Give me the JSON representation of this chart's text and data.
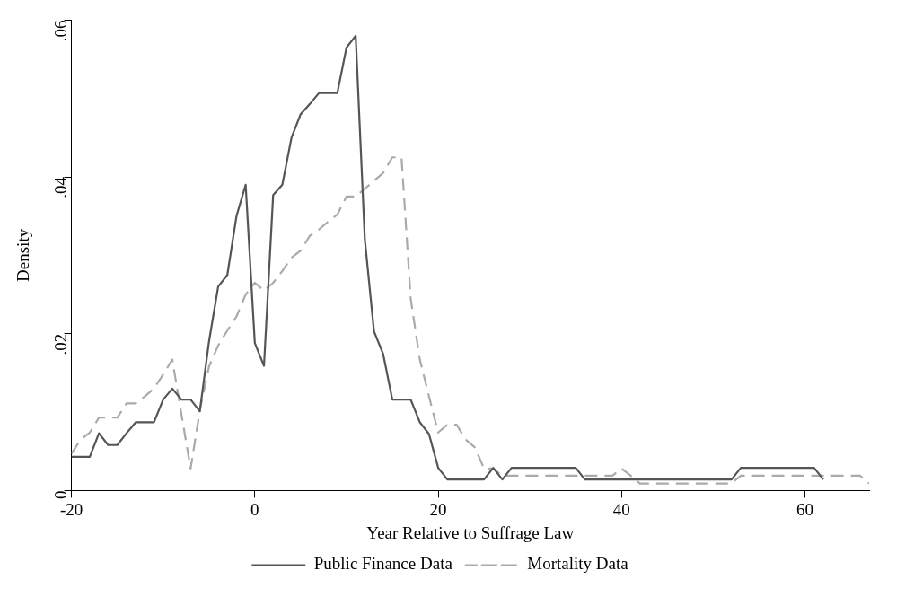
{
  "chart_data": {
    "type": "line",
    "xlabel": "Year Relative to Suffrage Law",
    "ylabel": "Density",
    "xlim": [
      -20,
      67
    ],
    "xticks": [
      -20,
      0,
      20,
      40,
      60
    ],
    "ylim": [
      0,
      0.06
    ],
    "yticks": [
      0,
      {
        "value": 0.02,
        "label": ".02"
      },
      {
        "value": 0.04,
        "label": ".04"
      },
      {
        "value": 0.06,
        "label": ".06"
      }
    ],
    "grid": false,
    "legend": "bottom",
    "marker": "none",
    "series": [
      {
        "name": "Public Finance Data",
        "color": "#555555",
        "line_style": "solid",
        "x": [
          -20,
          -19,
          -18,
          -17,
          -16,
          -15,
          -14,
          -13,
          -12,
          -11,
          -10,
          -9,
          -8,
          -7,
          -6,
          -5,
          -4,
          -3,
          -2,
          -1,
          0,
          1,
          2,
          3,
          4,
          5,
          6,
          7,
          8,
          9,
          10,
          11,
          12,
          13,
          14,
          15,
          16,
          17,
          18,
          19,
          20,
          21,
          25,
          26,
          27,
          28,
          35,
          36,
          52,
          53,
          61,
          62
        ],
        "values": [
          0.0043,
          0.0043,
          0.0043,
          0.0073,
          0.0058,
          0.0058,
          0.0073,
          0.0087,
          0.0087,
          0.0087,
          0.0116,
          0.013,
          0.0116,
          0.0116,
          0.0101,
          0.019,
          0.026,
          0.0275,
          0.035,
          0.039,
          0.0188,
          0.0159,
          0.0377,
          0.039,
          0.045,
          0.048,
          0.0493,
          0.0507,
          0.0507,
          0.0507,
          0.0565,
          0.058,
          0.032,
          0.0203,
          0.0174,
          0.0116,
          0.0116,
          0.0116,
          0.0087,
          0.0072,
          0.0029,
          0.0014,
          0.0014,
          0.0029,
          0.0014,
          0.0029,
          0.0029,
          0.0014,
          0.0014,
          0.0029,
          0.0029,
          0.0014
        ]
      },
      {
        "name": "Mortality Data",
        "color": "#aaaaaa",
        "line_style": "dashed",
        "x": [
          -20,
          -19,
          -18,
          -17,
          -16,
          -15,
          -14,
          -13,
          -12,
          -11,
          -10,
          -9,
          -8,
          -7,
          -6,
          -5,
          -4,
          -3,
          -2,
          -1,
          0,
          1,
          2,
          3,
          4,
          5,
          6,
          7,
          8,
          9,
          10,
          11,
          12,
          13,
          14,
          15,
          16,
          17,
          18,
          19,
          20,
          21,
          22,
          23,
          24,
          25,
          26,
          27,
          39,
          40,
          41,
          42,
          52,
          53,
          66,
          67
        ],
        "values": [
          0.0047,
          0.0065,
          0.0074,
          0.0093,
          0.0093,
          0.0093,
          0.0111,
          0.0111,
          0.012,
          0.013,
          0.0148,
          0.0167,
          0.0097,
          0.0028,
          0.0102,
          0.0158,
          0.0185,
          0.0204,
          0.0222,
          0.025,
          0.0265,
          0.0255,
          0.0265,
          0.028,
          0.0297,
          0.0306,
          0.0325,
          0.0333,
          0.0343,
          0.0352,
          0.0375,
          0.0375,
          0.0385,
          0.0395,
          0.0405,
          0.0425,
          0.0425,
          0.0245,
          0.0167,
          0.012,
          0.0074,
          0.0084,
          0.0084,
          0.0065,
          0.0055,
          0.0028,
          0.0028,
          0.0019,
          0.0019,
          0.0028,
          0.0019,
          0.0009,
          0.0009,
          0.0019,
          0.0019,
          0.0009
        ]
      }
    ]
  }
}
